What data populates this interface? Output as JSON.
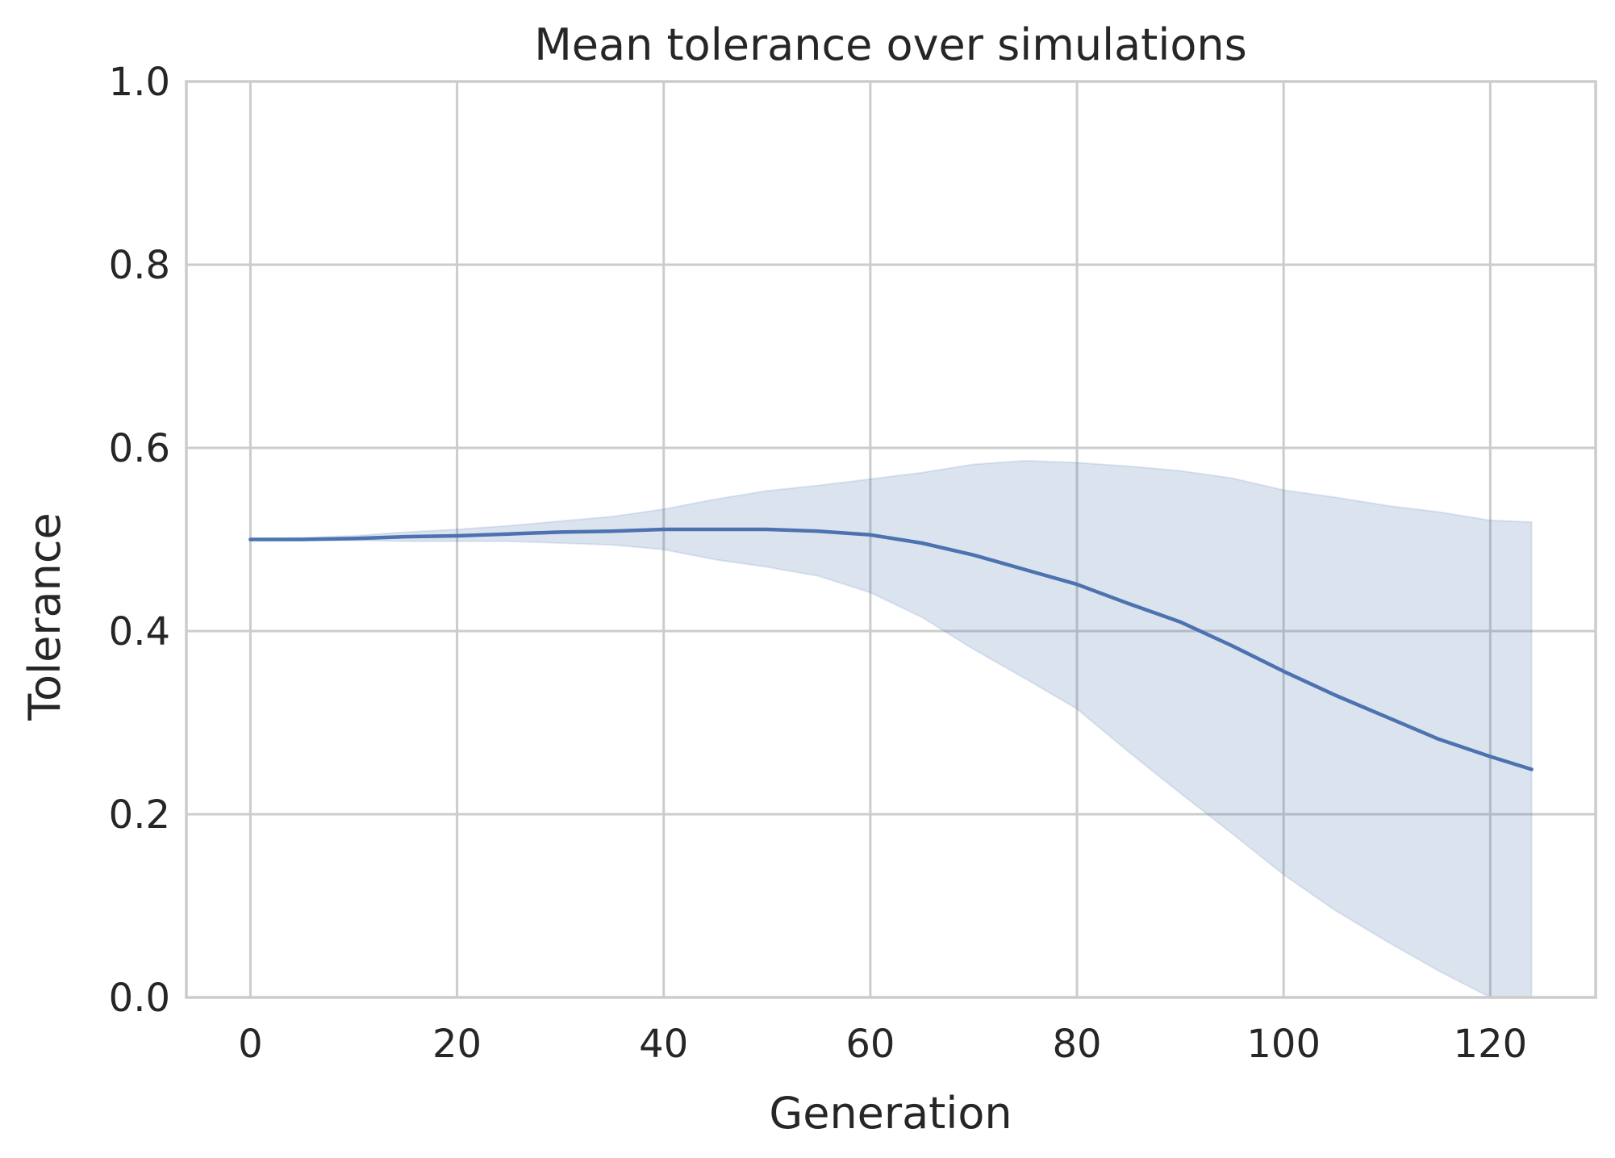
{
  "chart_data": {
    "type": "line",
    "title": "Mean tolerance over simulations",
    "xlabel": "Generation",
    "ylabel": "Tolerance",
    "xlim": [
      -6.2,
      130.2
    ],
    "ylim": [
      0.0,
      1.0
    ],
    "xticks": [
      0,
      20,
      40,
      60,
      80,
      100,
      120
    ],
    "yticks": [
      0.0,
      0.2,
      0.4,
      0.6,
      0.8,
      1.0
    ],
    "grid": true,
    "legend": "none",
    "colors": {
      "line": "#4c72b0",
      "band": "#4c72b0",
      "grid": "#cccccc",
      "text": "#262626"
    },
    "series": [
      {
        "x": [
          0,
          5,
          10,
          15,
          20,
          25,
          30,
          35,
          40,
          45,
          50,
          55,
          60,
          65,
          70,
          75,
          80,
          85,
          90,
          95,
          100,
          105,
          110,
          115,
          120,
          124
        ],
        "mean": [
          0.5,
          0.5,
          0.501,
          0.503,
          0.504,
          0.506,
          0.508,
          0.509,
          0.511,
          0.511,
          0.511,
          0.509,
          0.505,
          0.496,
          0.483,
          0.467,
          0.451,
          0.43,
          0.41,
          0.384,
          0.356,
          0.33,
          0.306,
          0.282,
          0.263,
          0.249
        ],
        "lower": [
          0.499,
          0.499,
          0.499,
          0.498,
          0.498,
          0.498,
          0.496,
          0.494,
          0.489,
          0.478,
          0.47,
          0.46,
          0.442,
          0.415,
          0.38,
          0.348,
          0.315,
          0.268,
          0.223,
          0.179,
          0.134,
          0.095,
          0.061,
          0.029,
          0.0,
          0.0
        ],
        "upper": [
          0.501,
          0.502,
          0.504,
          0.508,
          0.511,
          0.515,
          0.52,
          0.525,
          0.533,
          0.544,
          0.553,
          0.559,
          0.566,
          0.573,
          0.582,
          0.586,
          0.584,
          0.58,
          0.575,
          0.567,
          0.554,
          0.546,
          0.537,
          0.53,
          0.521,
          0.519
        ]
      }
    ]
  }
}
